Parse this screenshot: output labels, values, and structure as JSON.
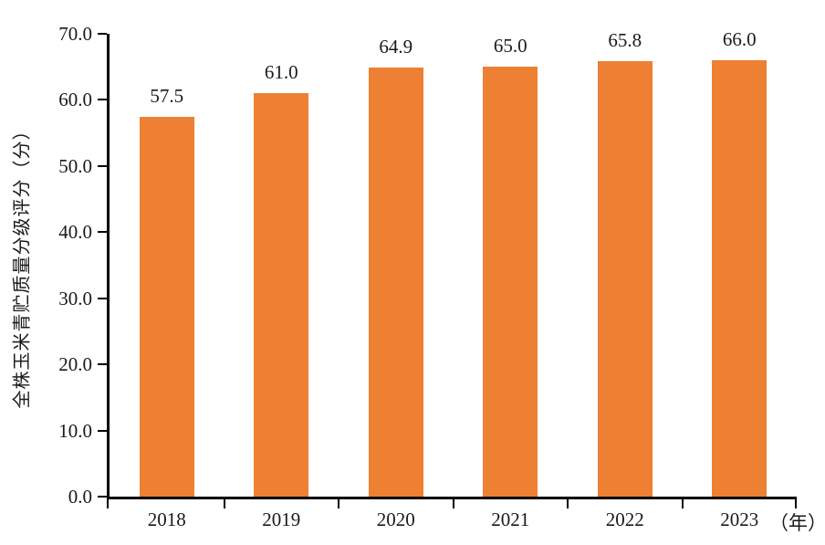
{
  "chart_data": {
    "type": "bar",
    "title": "",
    "categories": [
      "2018",
      "2019",
      "2020",
      "2021",
      "2022",
      "2023"
    ],
    "values": [
      57.5,
      61.0,
      64.9,
      65.0,
      65.8,
      66.0
    ],
    "value_labels": [
      "57.5",
      "61.0",
      "64.9",
      "65.0",
      "65.8",
      "66.0"
    ],
    "ylabel": "全株玉米青贮质量分级评分（分）",
    "x_unit_label": "（年）",
    "ylim": [
      0,
      70
    ],
    "ytick_step": 10,
    "ytick_labels": [
      "0.0",
      "10.0",
      "20.0",
      "30.0",
      "40.0",
      "50.0",
      "60.0",
      "70.0"
    ],
    "grid": false,
    "legend_position": "none",
    "bar_color": "#ED8033",
    "axis_color": "#000000",
    "text_color": "#1A1A1A"
  }
}
